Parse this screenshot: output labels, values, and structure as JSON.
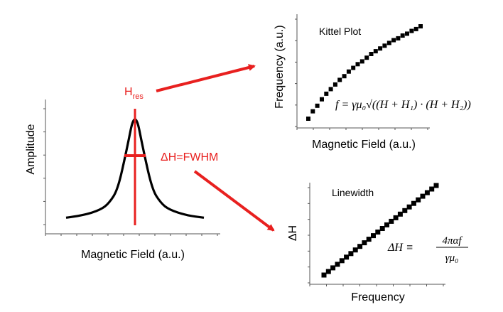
{
  "colors": {
    "accent": "#e8201f",
    "ink": "#000000",
    "axis": "#555555"
  },
  "left_panel": {
    "ylabel": "Amplitude",
    "xlabel": "Magnetic Field (a.u.)",
    "hres_label_main": "H",
    "hres_label_sub": "res",
    "fwhm_label": "ΔH=FWHM"
  },
  "kittel_panel": {
    "title": "Kittel Plot",
    "ylabel": "Frequency (a.u.)",
    "xlabel": "Magnetic Field (a.u.)",
    "formula": "f = γμ₀√((H + H₁) · (H + H₂))"
  },
  "linewidth_panel": {
    "title": "Linewidth",
    "ylabel": "ΔH",
    "xlabel": "Frequency",
    "formula_lhs": "ΔH ≡",
    "formula_num": "4παf",
    "formula_den": "γμ₀"
  },
  "chart_data": [
    {
      "type": "line",
      "name": "resonance",
      "x": [
        -4,
        -3,
        -2,
        -1.5,
        -1,
        -0.5,
        0,
        0.5,
        1,
        1.5,
        2,
        3,
        4
      ],
      "values": [
        0.03,
        0.05,
        0.1,
        0.16,
        0.28,
        0.62,
        1.0,
        0.62,
        0.28,
        0.16,
        0.1,
        0.05,
        0.03
      ]
    },
    {
      "type": "scatter",
      "name": "kittel",
      "x": [
        0.0,
        0.04,
        0.08,
        0.12,
        0.16,
        0.2,
        0.24,
        0.28,
        0.32,
        0.36,
        0.4,
        0.44,
        0.48,
        0.52,
        0.56,
        0.6,
        0.64,
        0.68,
        0.72,
        0.76,
        0.8,
        0.84,
        0.88,
        0.92,
        0.96,
        1.0
      ],
      "values": [
        0.0,
        0.08,
        0.14,
        0.21,
        0.27,
        0.32,
        0.37,
        0.42,
        0.46,
        0.51,
        0.55,
        0.59,
        0.62,
        0.66,
        0.7,
        0.73,
        0.76,
        0.79,
        0.82,
        0.85,
        0.87,
        0.9,
        0.92,
        0.95,
        0.97,
        1.0
      ]
    },
    {
      "type": "scatter",
      "name": "linewidth",
      "x": [
        0.0,
        0.04,
        0.08,
        0.12,
        0.16,
        0.2,
        0.24,
        0.28,
        0.32,
        0.36,
        0.4,
        0.44,
        0.48,
        0.52,
        0.56,
        0.6,
        0.64,
        0.68,
        0.72,
        0.76,
        0.8,
        0.84,
        0.88,
        0.92,
        0.96,
        1.0
      ],
      "values": [
        0.0,
        0.04,
        0.08,
        0.12,
        0.16,
        0.2,
        0.24,
        0.28,
        0.32,
        0.36,
        0.4,
        0.44,
        0.48,
        0.52,
        0.56,
        0.6,
        0.64,
        0.68,
        0.72,
        0.76,
        0.8,
        0.84,
        0.88,
        0.92,
        0.96,
        1.0
      ]
    }
  ]
}
